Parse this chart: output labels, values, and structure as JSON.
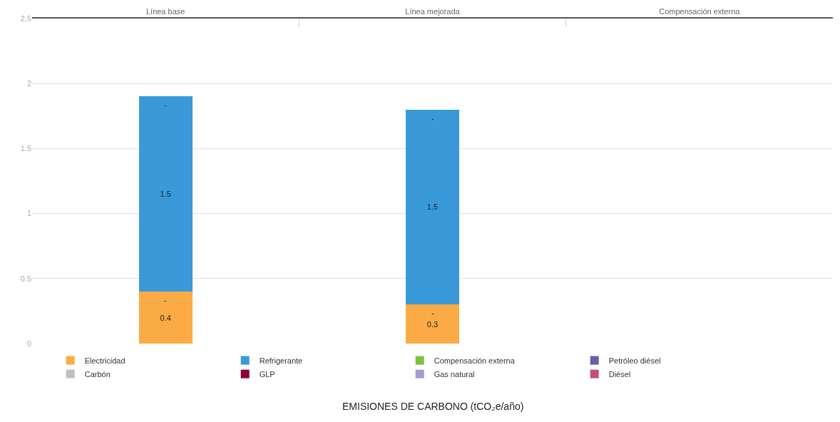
{
  "chart_data": {
    "type": "bar",
    "stacked": true,
    "categories": [
      "Línea base",
      "Línea mejorada",
      "Compensación externa"
    ],
    "series": [
      {
        "name": "Electricidad",
        "color": "#fbab45",
        "values": [
          0.4,
          0.3,
          null
        ],
        "value_labels": [
          "0.4",
          "0.3",
          null
        ]
      },
      {
        "name": "Refrigerante",
        "color": "#3a9ad9",
        "values": [
          1.5,
          1.5,
          null
        ],
        "value_labels": [
          "1.5",
          "1.5",
          null
        ]
      },
      {
        "name": "Compensación externa",
        "color": "#7cc142",
        "values": [
          null,
          null,
          null
        ]
      },
      {
        "name": "Petróleo diésel",
        "color": "#6a5fa8",
        "values": [
          null,
          null,
          null
        ]
      },
      {
        "name": "Carbón",
        "color": "#bfbfbf",
        "values": [
          null,
          null,
          null
        ]
      },
      {
        "name": "GLP",
        "color": "#8b0037",
        "values": [
          null,
          null,
          null
        ]
      },
      {
        "name": "Gas natural",
        "color": "#a29bd0",
        "values": [
          null,
          null,
          null
        ]
      },
      {
        "name": "Diésel",
        "color": "#c0507a",
        "values": [
          null,
          null,
          null
        ]
      }
    ],
    "annotations": [
      "-",
      "-",
      "-",
      "-",
      "EMISIONES DE CARBONO (tCO₂e/año)"
    ],
    "ylim": [
      0,
      2.5
    ],
    "yticks": [
      0,
      0.5,
      1,
      1.5,
      2,
      2.5
    ],
    "grid": "y",
    "legend": "bottom"
  }
}
